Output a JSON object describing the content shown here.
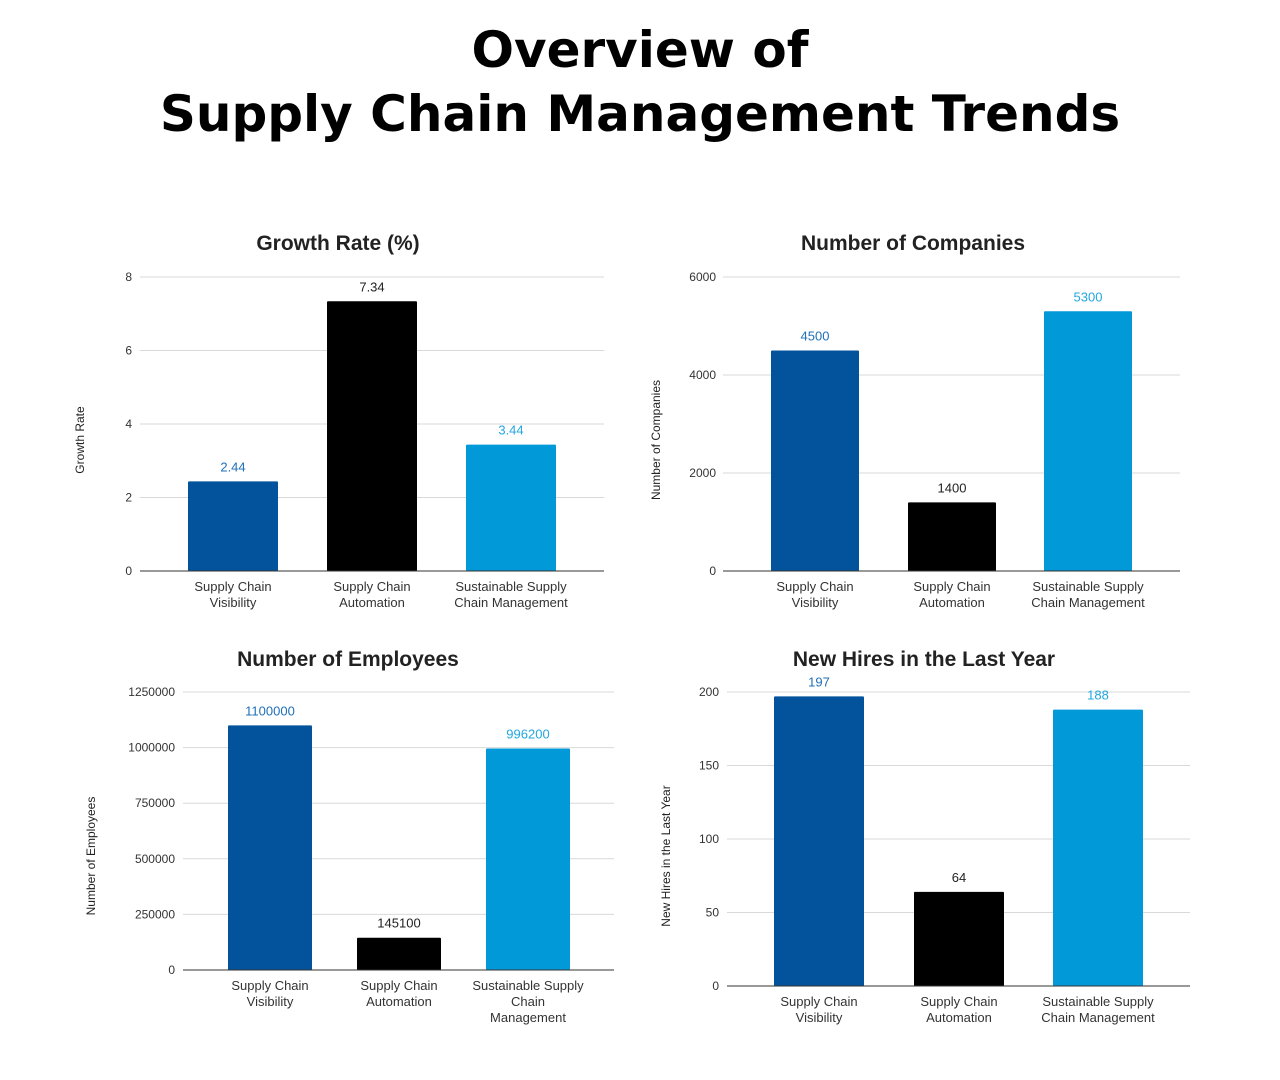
{
  "page": {
    "title_line1": "Overview of",
    "title_line2": "Supply Chain Management Trends"
  },
  "colors": {
    "visibility": "#03539c",
    "automation": "#000000",
    "sustainable": "#0199d8",
    "label_visibility": "#1f6fb8",
    "label_automation": "#222222",
    "label_sustainable": "#22a7e0"
  },
  "chart_data": [
    {
      "type": "bar",
      "title": "Growth Rate (%)",
      "xlabel": "",
      "ylabel": "Growth Rate",
      "categories": [
        [
          "Supply Chain",
          "Visibility"
        ],
        [
          "Supply Chain",
          "Automation"
        ],
        [
          "Sustainable Supply",
          "Chain Management"
        ]
      ],
      "values": [
        2.44,
        7.34,
        3.44
      ],
      "data_labels": [
        "2.44",
        "7.34",
        "3.44"
      ],
      "ylim": [
        0,
        8
      ],
      "yticks": [
        0,
        2,
        4,
        6,
        8
      ],
      "ytick_labels": [
        "0",
        "2",
        "4",
        "6",
        "8"
      ],
      "grid": true,
      "legend": "none"
    },
    {
      "type": "bar",
      "title": "Number of Companies",
      "xlabel": "",
      "ylabel": "Number of Companies",
      "categories": [
        [
          "Supply Chain",
          "Visibility"
        ],
        [
          "Supply Chain",
          "Automation"
        ],
        [
          "Sustainable Supply",
          "Chain Management"
        ]
      ],
      "values": [
        4500,
        1400,
        5300
      ],
      "data_labels": [
        "4500",
        "1400",
        "5300"
      ],
      "ylim": [
        0,
        6000
      ],
      "yticks": [
        0,
        2000,
        4000,
        6000
      ],
      "ytick_labels": [
        "0",
        "2000",
        "4000",
        "6000"
      ],
      "grid": true,
      "legend": "none"
    },
    {
      "type": "bar",
      "title": "Number of Employees",
      "xlabel": "",
      "ylabel": "Number of Employees",
      "categories": [
        [
          "Supply Chain",
          "Visibility"
        ],
        [
          "Supply Chain",
          "Automation"
        ],
        [
          "Sustainable Supply",
          "Chain",
          "Management"
        ]
      ],
      "values": [
        1100000,
        145100,
        996200
      ],
      "data_labels": [
        "1100000",
        "145100",
        "996200"
      ],
      "ylim": [
        0,
        1250000
      ],
      "yticks": [
        0,
        250000,
        500000,
        750000,
        1000000,
        1250000
      ],
      "ytick_labels": [
        "0",
        "250000",
        "500000",
        "750000",
        "1000000",
        "1250000"
      ],
      "grid": true,
      "legend": "none"
    },
    {
      "type": "bar",
      "title": "New Hires in the Last Year",
      "xlabel": "",
      "ylabel": "New Hires in the Last Year",
      "categories": [
        [
          "Supply Chain",
          "Visibility"
        ],
        [
          "Supply Chain",
          "Automation"
        ],
        [
          "Sustainable Supply",
          "Chain Management"
        ]
      ],
      "values": [
        197,
        64,
        188
      ],
      "data_labels": [
        "197",
        "64",
        "188"
      ],
      "ylim": [
        0,
        200
      ],
      "yticks": [
        0,
        50,
        100,
        150,
        200
      ],
      "ytick_labels": [
        "0",
        "50",
        "100",
        "150",
        "200"
      ],
      "grid": true,
      "legend": "none"
    }
  ]
}
